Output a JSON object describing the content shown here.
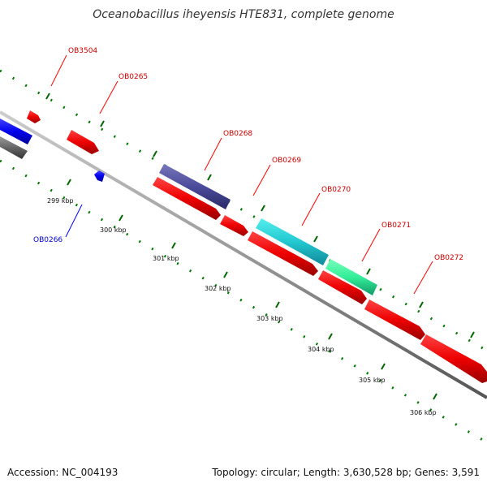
{
  "title": "Oceanobacillus iheyensis HTE831, complete genome",
  "footer": {
    "accession": "Accession: NC_004193",
    "info": "Topology: circular; Length: 3,630,528 bp; Genes: 3,591"
  },
  "ticks": [
    "299 kbp",
    "300 kbp",
    "301 kbp",
    "302 kbp",
    "303 kbp",
    "304 kbp",
    "305 kbp",
    "306 kbp"
  ],
  "genes": {
    "OB3504": "OB3504",
    "OB0265": "OB0265",
    "OB0266": "OB0266",
    "OB0268": "OB0268",
    "OB0269": "OB0269",
    "OB0270": "OB0270",
    "OB0271": "OB0271",
    "OB0272": "OB0272"
  },
  "colors": {
    "forward_gene": "#ff0000",
    "reverse_gene": "#0000ff",
    "backbone": "#999999",
    "gc_ticks": "#006600",
    "feature_purple": "#4b4b9b",
    "feature_cyan": "#22c8d0",
    "feature_green": "#33ee99",
    "feature_gray": "#666666"
  }
}
